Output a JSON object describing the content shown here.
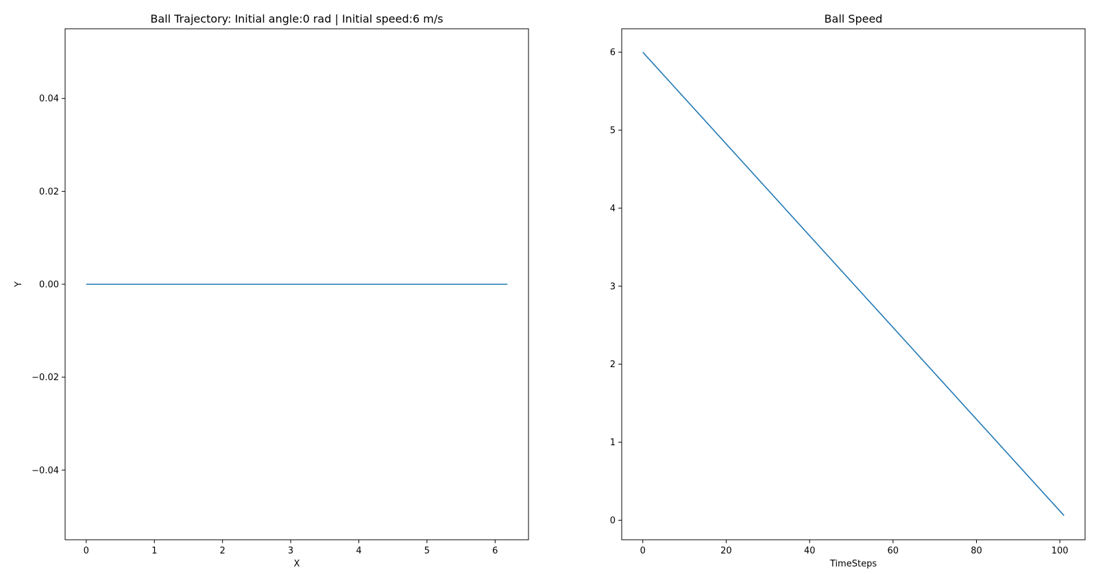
{
  "chart_data": [
    {
      "type": "line",
      "title": "Ball Trajectory: Initial angle:0 rad | Initial speed:6 m/s",
      "xlabel": "X",
      "ylabel": "Y",
      "xlim": [
        -0.31,
        6.49
      ],
      "ylim": [
        -0.055,
        0.055
      ],
      "x_ticks": [
        0,
        1,
        2,
        3,
        4,
        5,
        6
      ],
      "x_tick_labels": [
        "0",
        "1",
        "2",
        "3",
        "4",
        "5",
        "6"
      ],
      "y_ticks": [
        -0.04,
        -0.02,
        0.0,
        0.02,
        0.04
      ],
      "y_tick_labels": [
        "−0.04",
        "−0.02",
        "0.00",
        "0.02",
        "0.04"
      ],
      "grid": false,
      "color": "#1f77b4",
      "series": [
        {
          "x": [
            0,
            6.18
          ],
          "y": [
            0,
            0
          ]
        }
      ]
    },
    {
      "type": "line",
      "title": "Ball Speed",
      "xlabel": "TimeSteps",
      "ylabel": "",
      "xlim": [
        -5.05,
        106.05
      ],
      "ylim": [
        -0.25,
        6.3
      ],
      "x_ticks": [
        0,
        20,
        40,
        60,
        80,
        100
      ],
      "x_tick_labels": [
        "0",
        "20",
        "40",
        "60",
        "80",
        "100"
      ],
      "y_ticks": [
        0,
        1,
        2,
        3,
        4,
        5,
        6
      ],
      "y_tick_labels": [
        "0",
        "1",
        "2",
        "3",
        "4",
        "5",
        "6"
      ],
      "grid": false,
      "color": "#1f77b4",
      "series": [
        {
          "x": [
            0,
            101
          ],
          "y": [
            6,
            0.06
          ]
        }
      ]
    }
  ]
}
